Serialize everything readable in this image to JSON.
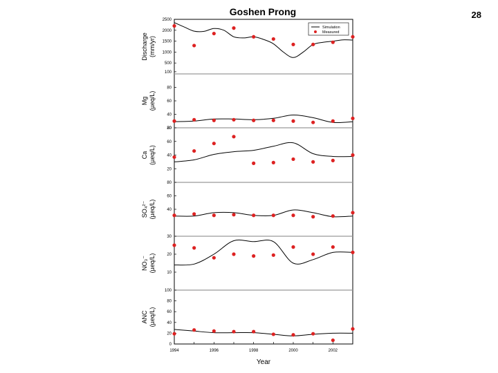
{
  "page_number": "28",
  "chart_data": {
    "type": "line",
    "title": "Goshen Prong",
    "xlabel": "Year",
    "xlim": [
      1994,
      2003
    ],
    "x_ticks": [
      "1994",
      "1996",
      "1998",
      "2000",
      "2002"
    ],
    "legend": {
      "position": "top-right",
      "entries": [
        "Simulation",
        "Measured"
      ]
    },
    "colors": {
      "simulation": "#000000",
      "measured": "#dd2222",
      "separator": "#999999"
    },
    "grid": false,
    "panels": [
      {
        "id": "discharge",
        "ylabel_lines": [
          "Discharge",
          "(mm/yr)"
        ],
        "ylim": [
          0,
          2500
        ],
        "y_ticks": [
          "100",
          "500",
          "1000",
          "1500",
          "2000",
          "2500"
        ],
        "simulation": {
          "x": [
            1994,
            1994.5,
            1995,
            1995.5,
            1996,
            1996.5,
            1997,
            1997.5,
            1998,
            1998.5,
            1999,
            1999.5,
            2000,
            2000.5,
            2001,
            2001.5,
            2002,
            2002.5,
            2003
          ],
          "y": [
            2350,
            2150,
            1960,
            1950,
            2080,
            2000,
            1700,
            1650,
            1700,
            1580,
            1380,
            1000,
            750,
            1000,
            1350,
            1450,
            1500,
            1560,
            1550
          ]
        },
        "measured": {
          "x": [
            1994,
            1995,
            1996,
            1997,
            1998,
            1999,
            2000,
            2001,
            2002,
            2003
          ],
          "y": [
            2200,
            1300,
            1850,
            2100,
            1700,
            1600,
            1350,
            1350,
            1450,
            1700
          ]
        }
      },
      {
        "id": "mg",
        "ylabel_lines": [
          "Mg",
          "(µeq/L)"
        ],
        "ylim": [
          20,
          100
        ],
        "y_ticks": [
          "20",
          "40",
          "60",
          "80"
        ],
        "simulation": {
          "x": [
            1994,
            1995,
            1996,
            1997,
            1998,
            1999,
            2000,
            2001,
            2002,
            2003
          ],
          "y": [
            29,
            30,
            33,
            33,
            32,
            34,
            39,
            35,
            28,
            29
          ]
        },
        "measured": {
          "x": [
            1994,
            1995,
            1996,
            1997,
            1998,
            1999,
            2000,
            2001,
            2002,
            2003
          ],
          "y": [
            30,
            32,
            31,
            32,
            31,
            31,
            30,
            28,
            30,
            34
          ]
        }
      },
      {
        "id": "ca",
        "ylabel_lines": [
          "Ca",
          "(µeq/L)"
        ],
        "ylim": [
          0,
          80
        ],
        "y_ticks": [
          "20",
          "40",
          "60",
          "80"
        ],
        "simulation": {
          "x": [
            1994,
            1995,
            1996,
            1997,
            1998,
            1999,
            2000,
            2001,
            2002,
            2003
          ],
          "y": [
            30,
            33,
            41,
            45,
            47,
            53,
            58,
            42,
            38,
            38
          ]
        },
        "measured": {
          "x": [
            1994,
            1995,
            1996,
            1997,
            1998,
            1999,
            2000,
            2001,
            2002,
            2003
          ],
          "y": [
            37,
            46,
            57,
            67,
            28,
            29,
            34,
            30,
            32,
            40
          ]
        }
      },
      {
        "id": "so4",
        "ylabel_lines": [
          "SO₄²⁻",
          "(µeq/L)"
        ],
        "ylim": [
          0,
          80
        ],
        "y_ticks": [
          "40",
          "60",
          "80"
        ],
        "simulation": {
          "x": [
            1994,
            1995,
            1996,
            1997,
            1998,
            1999,
            2000,
            2001,
            2002,
            2003
          ],
          "y": [
            30,
            30,
            35,
            35,
            31,
            31,
            39,
            35,
            29,
            30
          ]
        },
        "measured": {
          "x": [
            1994,
            1995,
            1996,
            1997,
            1998,
            1999,
            2000,
            2001,
            2002,
            2003
          ],
          "y": [
            31,
            33,
            31,
            32,
            31,
            31,
            31,
            29,
            30,
            35
          ]
        }
      },
      {
        "id": "no3",
        "ylabel_lines": [
          "NO₃⁻",
          "(µeq/L)"
        ],
        "ylim": [
          0,
          30
        ],
        "y_ticks": [
          "10",
          "20",
          "30"
        ],
        "simulation": {
          "x": [
            1994,
            1995,
            1996,
            1997,
            1998,
            1999,
            2000,
            2001,
            2002,
            2003
          ],
          "y": [
            14,
            14.5,
            20,
            27.5,
            27,
            27,
            15,
            17,
            21,
            21
          ]
        },
        "measured": {
          "x": [
            1994,
            1995,
            1996,
            1997,
            1998,
            1999,
            2000,
            2001,
            2002,
            2003
          ],
          "y": [
            25,
            23.5,
            18,
            20,
            19,
            19.5,
            24,
            20,
            24,
            21
          ]
        }
      },
      {
        "id": "anc",
        "ylabel_lines": [
          "ANC",
          "(µeq/L)"
        ],
        "ylim": [
          0,
          100
        ],
        "y_ticks": [
          "0",
          "20",
          "40",
          "60",
          "80",
          "100"
        ],
        "simulation": {
          "x": [
            1994,
            1995,
            1996,
            1997,
            1998,
            1999,
            2000,
            2001,
            2002,
            2003
          ],
          "y": [
            27,
            24,
            21,
            21,
            21,
            18,
            15,
            18,
            20,
            20
          ]
        },
        "measured": {
          "x": [
            1994,
            1995,
            1996,
            1997,
            1998,
            1999,
            2000,
            2001,
            2002,
            2003
          ],
          "y": [
            19,
            26,
            24,
            23,
            23,
            18,
            17,
            19,
            7,
            28
          ]
        }
      }
    ]
  }
}
